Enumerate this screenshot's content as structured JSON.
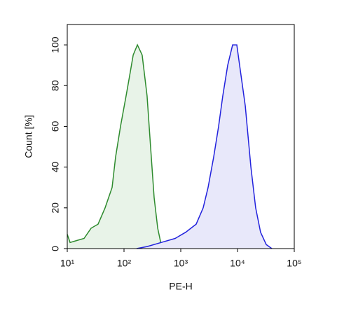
{
  "chart_data": {
    "type": "area",
    "x_label": "PE-H",
    "y_label": "Count [%]",
    "xscale": "log",
    "xlim": [
      10,
      100000
    ],
    "ylim": [
      0,
      110
    ],
    "xticks": [
      {
        "value": 10,
        "label": "10¹"
      },
      {
        "value": 100,
        "label": "10²"
      },
      {
        "value": 1000,
        "label": "10³"
      },
      {
        "value": 10000,
        "label": "10⁴"
      },
      {
        "value": 100000,
        "label": "10⁵"
      }
    ],
    "yticks": [
      0,
      20,
      40,
      60,
      80,
      100
    ],
    "series": [
      {
        "color": "#2e8b2e",
        "fill": "#e8f3e8",
        "x": [
          10,
          11.2,
          14.9,
          19.8,
          26.3,
          34.9,
          46.4,
          61.7,
          71.1,
          86.7,
          109,
          126,
          145,
          172,
          209,
          255,
          294,
          340,
          392,
          451,
          520
        ],
        "values": [
          7,
          3,
          4,
          5,
          10,
          12,
          20,
          30,
          45,
          60,
          75,
          85,
          95,
          100,
          95,
          75,
          50,
          25,
          10,
          2,
          0
        ]
      },
      {
        "color": "#2222dd",
        "fill": "#e8e8fa",
        "x": [
          167,
          255,
          451,
          796,
          1220,
          1870,
          2480,
          3030,
          3800,
          4640,
          5510,
          6720,
          8200,
          9730,
          10900,
          13700,
          17200,
          20900,
          25500,
          32100,
          40300
        ],
        "values": [
          0,
          1,
          3,
          5,
          8,
          12,
          20,
          30,
          45,
          60,
          75,
          90,
          100,
          100,
          90,
          70,
          40,
          20,
          8,
          2,
          0
        ]
      }
    ]
  }
}
